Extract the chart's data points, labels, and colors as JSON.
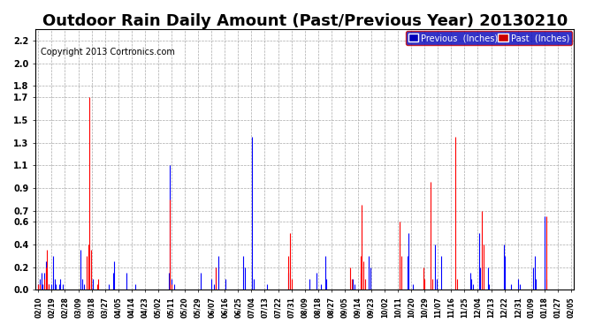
{
  "title": "Outdoor Rain Daily Amount (Past/Previous Year) 20130210",
  "copyright": "Copyright 2013 Cortronics.com",
  "legend_labels": [
    "Previous  (Inches)",
    "Past  (Inches)"
  ],
  "yticks": [
    0.0,
    0.2,
    0.4,
    0.6,
    0.7,
    0.9,
    1.1,
    1.3,
    1.5,
    1.7,
    1.8,
    2.0,
    2.2
  ],
  "ylim": [
    0.0,
    2.3
  ],
  "bg_color": "#ffffff",
  "grid_color": "#aaaaaa",
  "title_fontsize": 13,
  "copyright_fontsize": 7,
  "x_labels": [
    "02/10",
    "02/19",
    "02/28",
    "03/09",
    "03/18",
    "03/27",
    "04/05",
    "04/14",
    "04/23",
    "05/02",
    "05/11",
    "05/20",
    "05/29",
    "06/07",
    "06/16",
    "06/25",
    "07/04",
    "07/13",
    "07/22",
    "07/31",
    "08/09",
    "08/18",
    "08/27",
    "09/05",
    "09/14",
    "09/23",
    "10/02",
    "10/11",
    "10/20",
    "10/29",
    "11/07",
    "11/16",
    "11/25",
    "12/04",
    "12/13",
    "12/22",
    "12/31",
    "01/09",
    "01/18",
    "01/27",
    "02/05"
  ],
  "blue_data": [
    0.05,
    0.1,
    0.15,
    0.05,
    0.15,
    0.25,
    0.15,
    0.05,
    0.0,
    0.05,
    0.3,
    0.1,
    0.05,
    0.0,
    0.05,
    0.1,
    0.0,
    0.05,
    0.0,
    0.0,
    0.0,
    0.0,
    0.0,
    0.0,
    0.0,
    0.0,
    0.0,
    0.0,
    0.0,
    0.35,
    0.1,
    0.05,
    0.0,
    0.0,
    0.0,
    0.0,
    0.05,
    0.1,
    0.0,
    0.0,
    0.0,
    0.0,
    0.0,
    0.0,
    0.0,
    0.0,
    0.0,
    0.0,
    0.05,
    0.0,
    0.0,
    0.15,
    0.25,
    0.0,
    0.0,
    0.0,
    0.0,
    0.0,
    0.0,
    0.0,
    0.15,
    0.0,
    0.0,
    0.0,
    0.0,
    0.0,
    0.05,
    0.0,
    0.0,
    0.0,
    0.0,
    0.0,
    0.0,
    0.0,
    0.0,
    0.0,
    0.0,
    0.0,
    0.0,
    0.0,
    0.0,
    0.0,
    0.0,
    0.0,
    0.0,
    0.0,
    0.0,
    0.0,
    0.0,
    0.15,
    1.1,
    0.1,
    0.0,
    0.05,
    0.0,
    0.0,
    0.0,
    0.0,
    0.0,
    0.0,
    0.0,
    0.0,
    0.0,
    0.0,
    0.0,
    0.0,
    0.0,
    0.0,
    0.0,
    0.0,
    0.0,
    0.15,
    0.0,
    0.0,
    0.0,
    0.0,
    0.0,
    0.0,
    0.1,
    0.0,
    0.05,
    0.2,
    0.0,
    0.3,
    0.0,
    0.0,
    0.0,
    0.0,
    0.1,
    0.0,
    0.0,
    0.0,
    0.0,
    0.0,
    0.0,
    0.0,
    0.0,
    0.0,
    0.0,
    0.0,
    0.3,
    0.2,
    0.0,
    0.0,
    0.0,
    0.0,
    1.35,
    0.1,
    0.0,
    0.0,
    0.0,
    0.0,
    0.0,
    0.0,
    0.0,
    0.0,
    0.05,
    0.0,
    0.0,
    0.0,
    0.0,
    0.0,
    0.0,
    0.0,
    0.0,
    0.0,
    0.0,
    0.0,
    0.0,
    0.0,
    0.0,
    0.15,
    0.0,
    0.0,
    0.0,
    0.0,
    0.0,
    0.0,
    0.0,
    0.0,
    0.0,
    0.0,
    0.0,
    0.0,
    0.0,
    0.1,
    0.0,
    0.0,
    0.0,
    0.0,
    0.15,
    0.0,
    0.0,
    0.05,
    0.0,
    0.0,
    0.3,
    0.1,
    0.0,
    0.0,
    0.0,
    0.0,
    0.0,
    0.0,
    0.0,
    0.0,
    0.0,
    0.0,
    0.0,
    0.0,
    0.0,
    0.0,
    0.0,
    0.0,
    0.0,
    0.1,
    0.05,
    0.0,
    0.0,
    0.0,
    0.15,
    0.0,
    0.0,
    0.0,
    0.0,
    0.0,
    0.3,
    0.2,
    0.0,
    0.0,
    0.0,
    0.0,
    0.0,
    0.0,
    0.0,
    0.0,
    0.0,
    0.0,
    0.0,
    0.0,
    0.0,
    0.0,
    0.0,
    0.0,
    0.0,
    0.0,
    0.0,
    0.0,
    0.0,
    0.0,
    0.0,
    0.0,
    0.3,
    0.5,
    0.0,
    0.0,
    0.05,
    0.0,
    0.0,
    0.0,
    0.0,
    0.0,
    0.0,
    0.0,
    0.0,
    0.0,
    0.0,
    0.0,
    0.0,
    0.0,
    0.0,
    0.4,
    0.1,
    0.0,
    0.0,
    0.3,
    0.0,
    0.0,
    0.0,
    0.0,
    0.0,
    0.0,
    0.0,
    0.0,
    0.0,
    0.0,
    0.0,
    0.0,
    0.0,
    0.0,
    0.0,
    0.0,
    0.0,
    0.0,
    0.0,
    0.15,
    0.1,
    0.05,
    0.0,
    0.0,
    0.0,
    0.5,
    0.2,
    0.0,
    0.0,
    0.0,
    0.0,
    0.2,
    0.05,
    0.0,
    0.0,
    0.0,
    0.0,
    0.0,
    0.0,
    0.0,
    0.0,
    0.0,
    0.4,
    0.3,
    0.0,
    0.0,
    0.0,
    0.05,
    0.0,
    0.0,
    0.0,
    0.0,
    0.1,
    0.05,
    0.0,
    0.0,
    0.0,
    0.0,
    0.0,
    0.0,
    0.0,
    0.0,
    0.2,
    0.3,
    0.1,
    0.0,
    0.0,
    0.0,
    0.0,
    0.0,
    0.65,
    0.1,
    0.0,
    0.0,
    0.0,
    0.0,
    0.0,
    0.0,
    0.0,
    0.0,
    0.0,
    0.0,
    0.0,
    0.0,
    0.0,
    0.0,
    0.0,
    0.0,
    0.0
  ],
  "red_data": [
    0.05,
    0.05,
    0.0,
    0.0,
    0.1,
    0.2,
    0.35,
    0.05,
    0.0,
    0.0,
    0.0,
    0.0,
    0.0,
    0.0,
    0.0,
    0.0,
    0.0,
    0.0,
    0.0,
    0.0,
    0.0,
    0.0,
    0.0,
    0.0,
    0.0,
    0.0,
    0.0,
    0.0,
    0.0,
    0.0,
    0.0,
    0.0,
    0.0,
    0.3,
    0.4,
    1.7,
    0.35,
    0.0,
    0.0,
    0.0,
    0.05,
    0.1,
    0.0,
    0.0,
    0.0,
    0.0,
    0.0,
    0.0,
    0.0,
    0.0,
    0.0,
    0.0,
    0.0,
    0.0,
    0.0,
    0.0,
    0.0,
    0.0,
    0.0,
    0.0,
    0.0,
    0.0,
    0.0,
    0.0,
    0.0,
    0.0,
    0.0,
    0.0,
    0.0,
    0.0,
    0.0,
    0.0,
    0.0,
    0.0,
    0.0,
    0.0,
    0.0,
    0.0,
    0.0,
    0.0,
    0.0,
    0.0,
    0.0,
    0.0,
    0.0,
    0.0,
    0.0,
    0.0,
    0.0,
    0.0,
    0.8,
    0.05,
    0.0,
    0.0,
    0.0,
    0.0,
    0.0,
    0.0,
    0.0,
    0.0,
    0.0,
    0.0,
    0.0,
    0.0,
    0.0,
    0.0,
    0.0,
    0.0,
    0.0,
    0.0,
    0.0,
    0.0,
    0.0,
    0.0,
    0.0,
    0.0,
    0.0,
    0.0,
    0.0,
    0.0,
    0.0,
    0.2,
    0.0,
    0.0,
    0.0,
    0.0,
    0.0,
    0.0,
    0.0,
    0.0,
    0.0,
    0.0,
    0.0,
    0.0,
    0.0,
    0.0,
    0.0,
    0.0,
    0.0,
    0.0,
    0.0,
    0.0,
    0.0,
    0.0,
    0.0,
    0.0,
    0.0,
    0.0,
    0.0,
    0.0,
    0.0,
    0.0,
    0.0,
    0.0,
    0.0,
    0.0,
    0.0,
    0.0,
    0.0,
    0.0,
    0.0,
    0.0,
    0.0,
    0.0,
    0.0,
    0.0,
    0.0,
    0.0,
    0.0,
    0.0,
    0.0,
    0.3,
    0.5,
    0.1,
    0.0,
    0.0,
    0.0,
    0.0,
    0.0,
    0.0,
    0.0,
    0.0,
    0.0,
    0.0,
    0.0,
    0.0,
    0.0,
    0.0,
    0.0,
    0.0,
    0.0,
    0.0,
    0.0,
    0.0,
    0.0,
    0.0,
    0.0,
    0.0,
    0.0,
    0.0,
    0.0,
    0.0,
    0.0,
    0.0,
    0.0,
    0.0,
    0.0,
    0.0,
    0.0,
    0.0,
    0.0,
    0.0,
    0.0,
    0.2,
    0.1,
    0.0,
    0.0,
    0.0,
    0.0,
    0.0,
    0.3,
    0.75,
    0.25,
    0.1,
    0.0,
    0.0,
    0.0,
    0.0,
    0.0,
    0.0,
    0.0,
    0.0,
    0.0,
    0.0,
    0.0,
    0.0,
    0.0,
    0.0,
    0.0,
    0.0,
    0.0,
    0.0,
    0.0,
    0.0,
    0.0,
    0.0,
    0.0,
    0.6,
    0.3,
    0.0,
    0.0,
    0.0,
    0.0,
    0.0,
    0.0,
    0.0,
    0.0,
    0.0,
    0.0,
    0.0,
    0.0,
    0.0,
    0.0,
    0.2,
    0.1,
    0.0,
    0.0,
    0.0,
    0.95,
    0.1,
    0.0,
    0.0,
    0.0,
    0.0,
    0.0,
    0.0,
    0.0,
    0.0,
    0.0,
    0.0,
    0.0,
    0.0,
    0.0,
    0.0,
    0.0,
    1.35,
    0.1,
    0.0,
    0.0,
    0.0,
    0.0,
    0.0,
    0.0,
    0.0,
    0.0,
    0.0,
    0.0,
    0.0,
    0.0,
    0.0,
    0.0,
    0.0,
    0.0,
    0.7,
    0.4,
    0.0,
    0.0,
    0.0,
    0.0,
    0.0,
    0.0,
    0.0,
    0.0,
    0.0,
    0.0,
    0.0,
    0.0,
    0.0,
    0.0,
    0.0,
    0.0,
    0.0,
    0.0,
    0.0,
    0.0,
    0.0,
    0.0,
    0.0,
    0.0,
    0.0,
    0.0,
    0.0,
    0.0,
    0.0,
    0.0,
    0.0,
    0.0,
    0.0,
    0.0,
    0.0,
    0.0,
    0.0,
    0.0,
    0.0,
    0.0,
    0.0,
    0.0,
    0.65,
    0.0,
    0.0,
    0.0,
    0.0,
    0.0,
    0.0,
    0.0,
    0.0,
    0.0,
    0.0,
    0.0,
    0.0,
    0.0,
    0.0,
    0.0,
    0.0,
    0.0
  ]
}
